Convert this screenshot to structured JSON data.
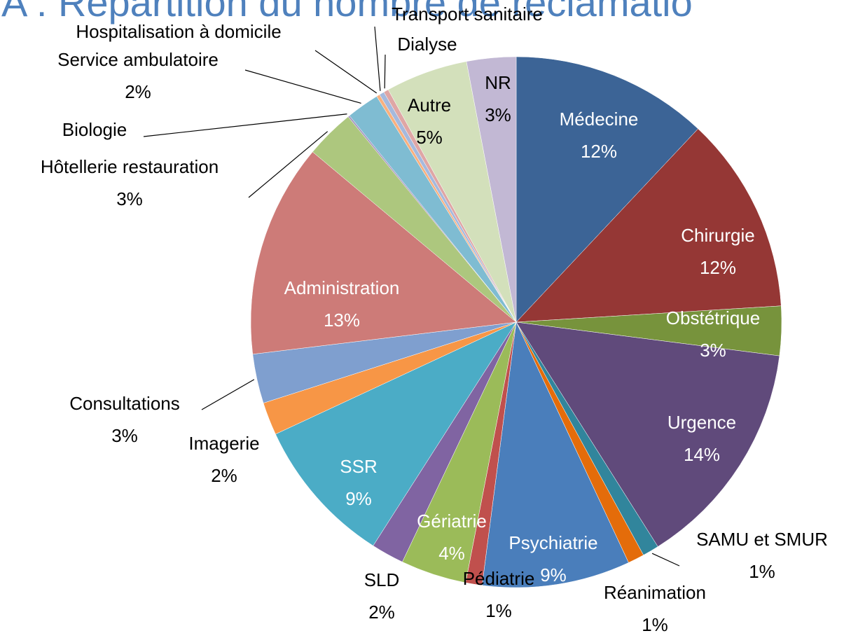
{
  "chart_data": {
    "type": "pie",
    "title": "A : Répartition du nombre de réclamatio",
    "categories": [
      "Médecine",
      "Chirurgie",
      "Obstétrique",
      "Urgence",
      "SAMU et SMUR",
      "Réanimation",
      "Psychiatrie",
      "Pédiatrie",
      "Gériatrie",
      "SLD",
      "SSR",
      "Imagerie",
      "Consultations",
      "Administration",
      "Hôtellerie restauration",
      "Biologie",
      "Service ambulatoire",
      "Hospitalisation à domicile",
      "Transport sanitaire",
      "Dialyse",
      "Autre",
      "NR"
    ],
    "values": [
      12,
      12,
      3,
      14,
      1,
      1,
      9,
      1,
      4,
      2,
      9,
      2,
      3,
      13,
      3,
      0.1,
      2,
      0.2,
      0.3,
      0.3,
      5,
      3
    ],
    "value_labels": [
      "12%",
      "12%",
      "3%",
      "14%",
      "1%",
      "1%",
      "9%",
      "1%",
      "4%",
      "2%",
      "9%",
      "2%",
      "3%",
      "13%",
      "3%",
      null,
      "2%",
      null,
      null,
      null,
      "5%",
      "3%"
    ],
    "colors": [
      "#3c6496",
      "#953735",
      "#77933c",
      "#604a7b",
      "#31859c",
      "#e46c0a",
      "#4a7ebb",
      "#c0504d",
      "#9bbb59",
      "#8064a2",
      "#4bacc6",
      "#f79646",
      "#7f9fcf",
      "#cd7b78",
      "#adc77e",
      "#a594c0",
      "#7fbcd2",
      "#f9b07e",
      "#a5b9dd",
      "#dfa6a5",
      "#d3e0bb",
      "#c2b8d4"
    ]
  }
}
